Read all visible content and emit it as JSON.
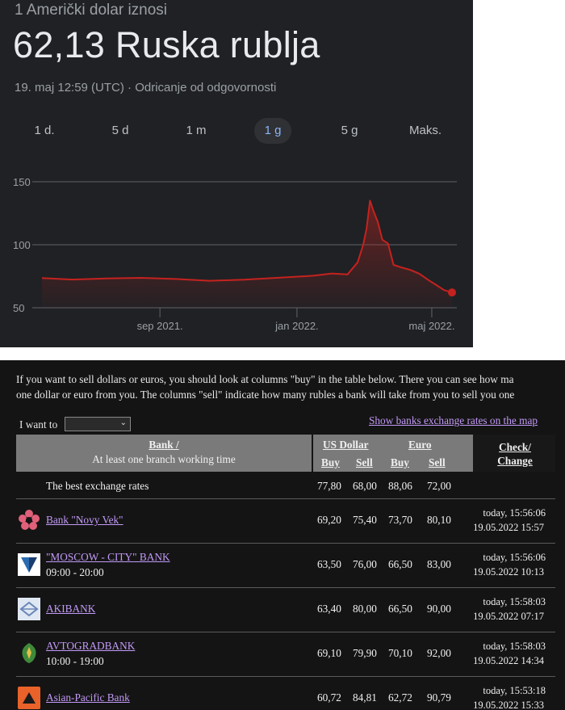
{
  "widget": {
    "subtitle": "1 Američki dolar iznosi",
    "value": "62,13 Ruska rublja",
    "timestamp": "19. maj 12:59 (UTC) · Odricanje od odgovornosti",
    "ranges": [
      "1 d.",
      "5 d",
      "1 m",
      "1 g",
      "5 g",
      "Maks."
    ],
    "active_range": "1 g",
    "colors": {
      "background": "#202124",
      "line": "#c5221f",
      "active_tab_text": "#8ab4f8"
    }
  },
  "chart_data": {
    "type": "area",
    "title": "",
    "xlabel": "",
    "ylabel": "",
    "ylim": [
      50,
      150
    ],
    "yticks": [
      "150",
      "100",
      "50"
    ],
    "xticks": [
      "sep 2021.",
      "jan 2022.",
      "maj 2022."
    ],
    "grid": true,
    "series": [
      {
        "x": [
          "2021-05-19",
          "2021-06-15",
          "2021-07-15",
          "2021-08-15",
          "2021-09-15",
          "2021-10-15",
          "2021-11-15",
          "2021-12-15",
          "2022-01-15",
          "2022-02-01",
          "2022-02-15",
          "2022-02-24",
          "2022-03-01",
          "2022-03-04",
          "2022-03-07",
          "2022-03-10",
          "2022-03-14",
          "2022-03-18",
          "2022-03-23",
          "2022-03-28",
          "2022-04-04",
          "2022-04-12",
          "2022-04-20",
          "2022-04-28",
          "2022-05-05",
          "2022-05-12",
          "2022-05-19"
        ],
        "values": [
          73.5,
          72.4,
          73.2,
          73.7,
          72.8,
          71.4,
          72.3,
          73.8,
          75.4,
          77.2,
          76.5,
          86,
          100,
          113,
          135,
          127,
          118,
          104,
          101,
          84,
          82,
          80,
          77,
          72,
          68,
          64,
          62.13
        ]
      }
    ]
  },
  "bank": {
    "intro_line1": "If you want to sell dollars or euros, you should look at columns \"buy\" in the table below. There you can see how ma",
    "intro_line2": "one dollar or euro from you. The columns \"sell\" indicate how many rubles a bank will take from you to sell you one",
    "iwant_label": "I want to",
    "select_value": "",
    "map_link": "Show banks exchange rates on the map",
    "header": {
      "bank": "Bank /",
      "bank_sub": "At least one branch working time",
      "usd": "US Dollar",
      "eur": "Euro",
      "buy": "Buy",
      "sell": "Sell",
      "check": "Check/",
      "change": "Change"
    },
    "best": {
      "label": "The best exchange rates",
      "usd_buy": "77,80",
      "usd_sell": "68,00",
      "eur_buy": "88,06",
      "eur_sell": "72,00"
    },
    "rows": [
      {
        "name": "Bank \"Novy Vek\"",
        "hours": "",
        "usd_buy": "69,20",
        "usd_sell": "75,40",
        "eur_buy": "73,70",
        "eur_sell": "80,10",
        "check": "today, 15:56:06",
        "change": "19.05.2022 15:57",
        "logo_icon": "flower-logo-icon"
      },
      {
        "name": "\"MOSCOW - CITY\" BANK",
        "hours": "09:00 - 20:00",
        "usd_buy": "63,50",
        "usd_sell": "76,00",
        "eur_buy": "66,50",
        "eur_sell": "83,00",
        "check": "today, 15:56:06",
        "change": "19.05.2022 10:13",
        "logo_icon": "shield-logo-icon"
      },
      {
        "name": "AKIBANK",
        "hours": "",
        "usd_buy": "63,40",
        "usd_sell": "80,00",
        "eur_buy": "66,50",
        "eur_sell": "90,00",
        "check": "today, 15:58:03",
        "change": "19.05.2022 07:17",
        "logo_icon": "diamond-logo-icon"
      },
      {
        "name": "AVTOGRADBANK",
        "hours": "10:00 - 19:00",
        "usd_buy": "69,10",
        "usd_sell": "79,90",
        "eur_buy": "70,10",
        "eur_sell": "92,00",
        "check": "today, 15:58:03",
        "change": "19.05.2022 14:34",
        "logo_icon": "emblem-logo-icon"
      },
      {
        "name": "Asian-Pacific Bank",
        "hours": "",
        "usd_buy": "60,72",
        "usd_sell": "84,81",
        "eur_buy": "62,72",
        "eur_sell": "90,79",
        "check": "today, 15:53:18",
        "change": "19.05.2022 15:33",
        "logo_icon": "triangle-logo-icon"
      }
    ]
  }
}
